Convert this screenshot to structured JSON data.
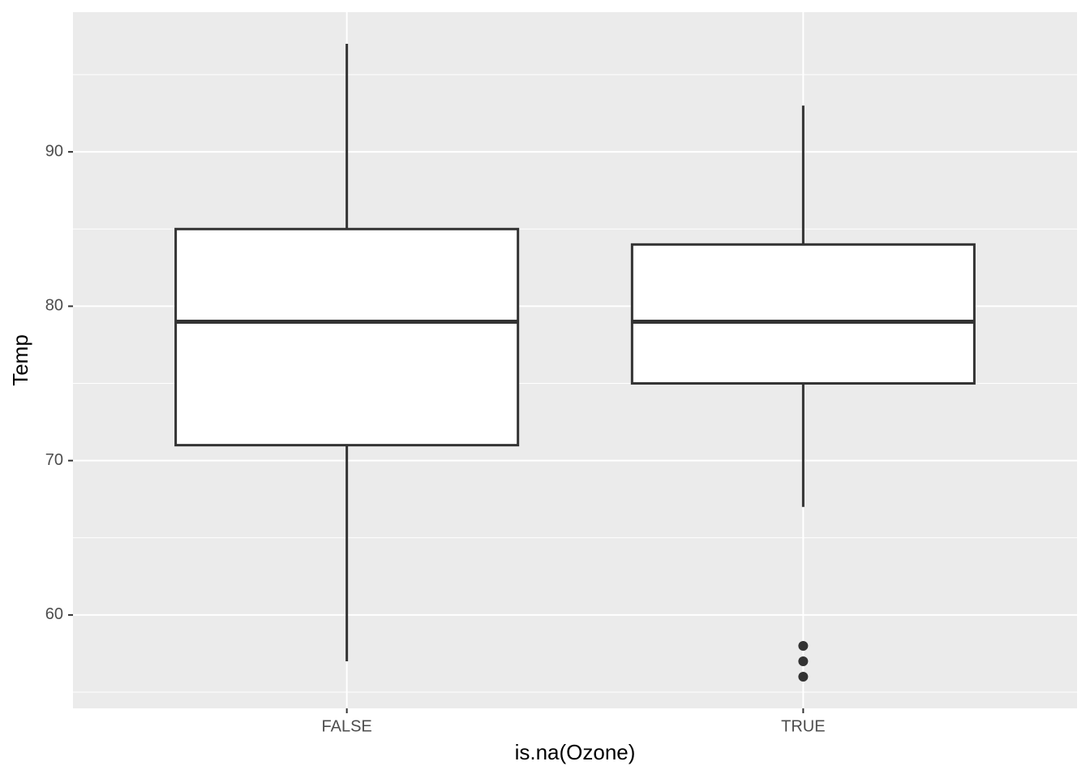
{
  "chart_data": {
    "type": "box",
    "x_label": "is.na(Ozone)",
    "y_label": "Temp",
    "categories": [
      "FALSE",
      "TRUE"
    ],
    "boxes": [
      {
        "whisker_low": 57,
        "q1": 71,
        "median": 79,
        "q3": 85,
        "whisker_high": 97,
        "outliers": []
      },
      {
        "whisker_low": 67,
        "q1": 75,
        "median": 79,
        "q3": 84,
        "whisker_high": 93,
        "outliers": [
          58,
          57,
          56
        ]
      }
    ],
    "fill": "#ffffff",
    "color": "#333333",
    "background": "#ebebeb",
    "ylim": [
      53.95,
      99.05
    ],
    "yticks": [
      60,
      70,
      80,
      90
    ],
    "y_minor_grid": [
      55,
      65,
      75,
      85,
      95
    ],
    "grid": true
  }
}
